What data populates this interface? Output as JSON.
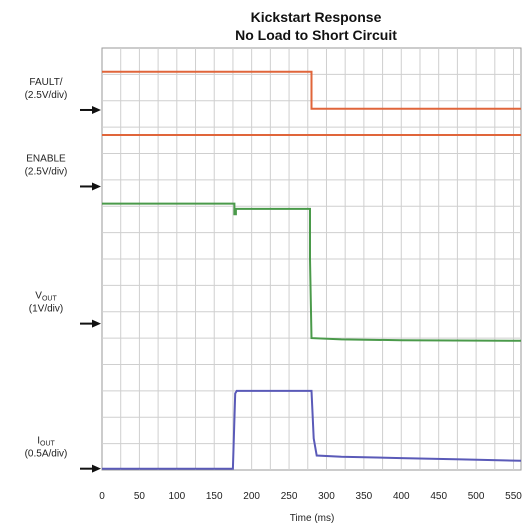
{
  "chart_data": {
    "type": "line",
    "title": "Kickstart Response",
    "subtitle": "No Load to Short Circuit",
    "xlabel": "Time (ms)",
    "xlim": [
      0,
      560
    ],
    "x_ticks": [
      "0",
      "50",
      "100",
      "150",
      "200",
      "250",
      "300",
      "350",
      "400",
      "450",
      "500",
      "550"
    ],
    "grid": true,
    "y_units": "divisions",
    "ylim": [
      0,
      16
    ],
    "channels": [
      {
        "label_main": "FAULT/",
        "label_scale": "(2.5V/div)",
        "ground_div": 13.65
      },
      {
        "label_main": "ENABLE",
        "label_scale": "(2.5V/div)",
        "ground_div": 10.75
      },
      {
        "label_main": "V",
        "label_sub": "OUT",
        "label_scale": "(1V/div)",
        "ground_div": 5.55
      },
      {
        "label_main": "I",
        "label_sub": "OUT",
        "label_scale": "(0.5A/div)",
        "ground_div": 0.05
      }
    ],
    "series": [
      {
        "color": "#e0653a",
        "x": [
          0,
          280,
          280,
          560
        ],
        "y": [
          15.1,
          15.1,
          13.7,
          13.7
        ]
      },
      {
        "color": "#e0653a",
        "x": [
          0,
          560
        ],
        "y": [
          12.7,
          12.7
        ]
      },
      {
        "color": "#4a9a4a",
        "x": [
          0,
          177,
          177,
          179,
          179,
          278,
          278,
          280,
          320,
          400,
          560
        ],
        "y": [
          10.1,
          10.1,
          9.7,
          9.7,
          9.9,
          9.9,
          8.0,
          5.0,
          4.95,
          4.92,
          4.9
        ]
      },
      {
        "color": "#5a5ab8",
        "x": [
          0,
          175,
          178,
          180,
          280,
          283,
          287,
          320,
          400,
          480,
          560
        ],
        "y": [
          0.05,
          0.05,
          2.9,
          3.0,
          3.0,
          1.2,
          0.55,
          0.5,
          0.45,
          0.4,
          0.35
        ]
      }
    ]
  }
}
